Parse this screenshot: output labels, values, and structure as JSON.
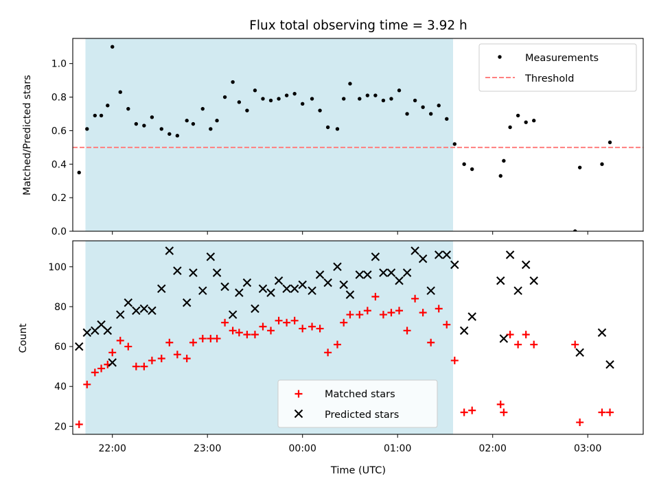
{
  "chart_data": [
    {
      "type": "scatter",
      "title": "Flux total observing time = 3.92 h",
      "xlabel": "",
      "ylabel": "Matched/Predicted stars",
      "xlim": [
        "21:35",
        "03:35"
      ],
      "ylim": [
        0,
        1.15
      ],
      "yticks": [
        "0.0",
        "0.2",
        "0.4",
        "0.6",
        "0.8",
        "1.0"
      ],
      "grid": false,
      "legend_position": "upper-right",
      "shaded_interval": [
        "21:43",
        "01:35"
      ],
      "shaded_color": "#add8e6",
      "threshold": {
        "name": "Threshold",
        "value": 0.5,
        "x_range": [
          "21:35",
          "03:35"
        ],
        "color": "#ff7f7f",
        "style": "dashed"
      },
      "series": [
        {
          "name": "Measurements",
          "marker": "dot",
          "color": "#000000",
          "points": [
            [
              "21:39",
              0.35
            ],
            [
              "21:44",
              0.61
            ],
            [
              "21:49",
              0.69
            ],
            [
              "21:53",
              0.69
            ],
            [
              "21:57",
              0.75
            ],
            [
              "22:00",
              1.1
            ],
            [
              "22:05",
              0.83
            ],
            [
              "22:10",
              0.73
            ],
            [
              "22:15",
              0.64
            ],
            [
              "22:20",
              0.63
            ],
            [
              "22:25",
              0.68
            ],
            [
              "22:31",
              0.61
            ],
            [
              "22:36",
              0.58
            ],
            [
              "22:41",
              0.57
            ],
            [
              "22:47",
              0.66
            ],
            [
              "22:51",
              0.64
            ],
            [
              "22:57",
              0.73
            ],
            [
              "23:02",
              0.61
            ],
            [
              "23:06",
              0.66
            ],
            [
              "23:11",
              0.8
            ],
            [
              "23:16",
              0.89
            ],
            [
              "23:20",
              0.77
            ],
            [
              "23:25",
              0.72
            ],
            [
              "23:30",
              0.84
            ],
            [
              "23:35",
              0.79
            ],
            [
              "23:40",
              0.78
            ],
            [
              "23:45",
              0.79
            ],
            [
              "23:50",
              0.81
            ],
            [
              "23:55",
              0.82
            ],
            [
              "00:00",
              0.76
            ],
            [
              "00:06",
              0.79
            ],
            [
              "00:11",
              0.72
            ],
            [
              "00:16",
              0.62
            ],
            [
              "00:22",
              0.61
            ],
            [
              "00:26",
              0.79
            ],
            [
              "00:30",
              0.88
            ],
            [
              "00:36",
              0.79
            ],
            [
              "00:41",
              0.81
            ],
            [
              "00:46",
              0.81
            ],
            [
              "00:51",
              0.78
            ],
            [
              "00:56",
              0.79
            ],
            [
              "01:01",
              0.84
            ],
            [
              "01:06",
              0.7
            ],
            [
              "01:11",
              0.78
            ],
            [
              "01:16",
              0.74
            ],
            [
              "01:21",
              0.7
            ],
            [
              "01:26",
              0.75
            ],
            [
              "01:31",
              0.67
            ],
            [
              "01:36",
              0.52
            ],
            [
              "01:42",
              0.4
            ],
            [
              "01:47",
              0.37
            ],
            [
              "02:05",
              0.33
            ],
            [
              "02:07",
              0.42
            ],
            [
              "02:11",
              0.62
            ],
            [
              "02:16",
              0.69
            ],
            [
              "02:21",
              0.65
            ],
            [
              "02:26",
              0.66
            ],
            [
              "02:52",
              0.0
            ],
            [
              "02:55",
              0.38
            ],
            [
              "03:09",
              0.4
            ],
            [
              "03:14",
              0.53
            ]
          ]
        }
      ]
    },
    {
      "type": "scatter",
      "title": "",
      "xlabel": "Time (UTC)",
      "ylabel": "Count",
      "xlim": [
        "21:35",
        "03:35"
      ],
      "ylim": [
        16,
        113
      ],
      "xticks": [
        "22:00",
        "23:00",
        "00:00",
        "01:00",
        "02:00",
        "03:00"
      ],
      "yticks": [
        "20",
        "40",
        "60",
        "80",
        "100"
      ],
      "grid": false,
      "legend_position": "lower-center",
      "shaded_interval": [
        "21:43",
        "01:35"
      ],
      "shaded_color": "#add8e6",
      "series": [
        {
          "name": "Matched stars",
          "marker": "plus",
          "color": "#ff0000",
          "points": [
            [
              "21:39",
              21
            ],
            [
              "21:44",
              41
            ],
            [
              "21:49",
              47
            ],
            [
              "21:53",
              49
            ],
            [
              "21:57",
              51
            ],
            [
              "22:00",
              57
            ],
            [
              "22:05",
              63
            ],
            [
              "22:10",
              60
            ],
            [
              "22:15",
              50
            ],
            [
              "22:20",
              50
            ],
            [
              "22:25",
              53
            ],
            [
              "22:31",
              54
            ],
            [
              "22:36",
              62
            ],
            [
              "22:41",
              56
            ],
            [
              "22:47",
              54
            ],
            [
              "22:51",
              62
            ],
            [
              "22:57",
              64
            ],
            [
              "23:02",
              64
            ],
            [
              "23:06",
              64
            ],
            [
              "23:11",
              72
            ],
            [
              "23:16",
              68
            ],
            [
              "23:20",
              67
            ],
            [
              "23:25",
              66
            ],
            [
              "23:30",
              66
            ],
            [
              "23:35",
              70
            ],
            [
              "23:40",
              68
            ],
            [
              "23:45",
              73
            ],
            [
              "23:50",
              72
            ],
            [
              "23:55",
              73
            ],
            [
              "00:00",
              69
            ],
            [
              "00:06",
              70
            ],
            [
              "00:11",
              69
            ],
            [
              "00:16",
              57
            ],
            [
              "00:22",
              61
            ],
            [
              "00:26",
              72
            ],
            [
              "00:30",
              76
            ],
            [
              "00:36",
              76
            ],
            [
              "00:41",
              78
            ],
            [
              "00:46",
              85
            ],
            [
              "00:51",
              76
            ],
            [
              "00:56",
              77
            ],
            [
              "01:01",
              78
            ],
            [
              "01:06",
              68
            ],
            [
              "01:11",
              84
            ],
            [
              "01:16",
              77
            ],
            [
              "01:21",
              62
            ],
            [
              "01:26",
              79
            ],
            [
              "01:31",
              71
            ],
            [
              "01:36",
              53
            ],
            [
              "01:42",
              27
            ],
            [
              "01:47",
              28
            ],
            [
              "02:05",
              31
            ],
            [
              "02:07",
              27
            ],
            [
              "02:11",
              66
            ],
            [
              "02:16",
              61
            ],
            [
              "02:21",
              66
            ],
            [
              "02:26",
              61
            ],
            [
              "02:52",
              61
            ],
            [
              "02:55",
              22
            ],
            [
              "03:09",
              27
            ],
            [
              "03:14",
              27
            ]
          ]
        },
        {
          "name": "Predicted stars",
          "marker": "x",
          "color": "#000000",
          "points": [
            [
              "21:39",
              60
            ],
            [
              "21:44",
              67
            ],
            [
              "21:49",
              68
            ],
            [
              "21:53",
              71
            ],
            [
              "21:57",
              68
            ],
            [
              "22:00",
              52
            ],
            [
              "22:05",
              76
            ],
            [
              "22:10",
              82
            ],
            [
              "22:15",
              78
            ],
            [
              "22:20",
              79
            ],
            [
              "22:25",
              78
            ],
            [
              "22:31",
              89
            ],
            [
              "22:36",
              108
            ],
            [
              "22:41",
              98
            ],
            [
              "22:47",
              82
            ],
            [
              "22:51",
              97
            ],
            [
              "22:57",
              88
            ],
            [
              "23:02",
              105
            ],
            [
              "23:06",
              97
            ],
            [
              "23:11",
              90
            ],
            [
              "23:16",
              76
            ],
            [
              "23:20",
              87
            ],
            [
              "23:25",
              92
            ],
            [
              "23:30",
              79
            ],
            [
              "23:35",
              89
            ],
            [
              "23:40",
              87
            ],
            [
              "23:45",
              93
            ],
            [
              "23:50",
              89
            ],
            [
              "23:55",
              89
            ],
            [
              "00:00",
              91
            ],
            [
              "00:06",
              88
            ],
            [
              "00:11",
              96
            ],
            [
              "00:16",
              92
            ],
            [
              "00:22",
              100
            ],
            [
              "00:26",
              91
            ],
            [
              "00:30",
              86
            ],
            [
              "00:36",
              96
            ],
            [
              "00:41",
              96
            ],
            [
              "00:46",
              105
            ],
            [
              "00:51",
              97
            ],
            [
              "00:56",
              97
            ],
            [
              "01:01",
              93
            ],
            [
              "01:06",
              97
            ],
            [
              "01:11",
              108
            ],
            [
              "01:16",
              104
            ],
            [
              "01:21",
              88
            ],
            [
              "01:26",
              106
            ],
            [
              "01:31",
              106
            ],
            [
              "01:36",
              101
            ],
            [
              "01:42",
              68
            ],
            [
              "01:47",
              75
            ],
            [
              "02:05",
              93
            ],
            [
              "02:07",
              64
            ],
            [
              "02:11",
              106
            ],
            [
              "02:16",
              88
            ],
            [
              "02:21",
              101
            ],
            [
              "02:26",
              93
            ],
            [
              "02:55",
              57
            ],
            [
              "03:09",
              67
            ],
            [
              "03:14",
              51
            ]
          ]
        }
      ]
    }
  ]
}
